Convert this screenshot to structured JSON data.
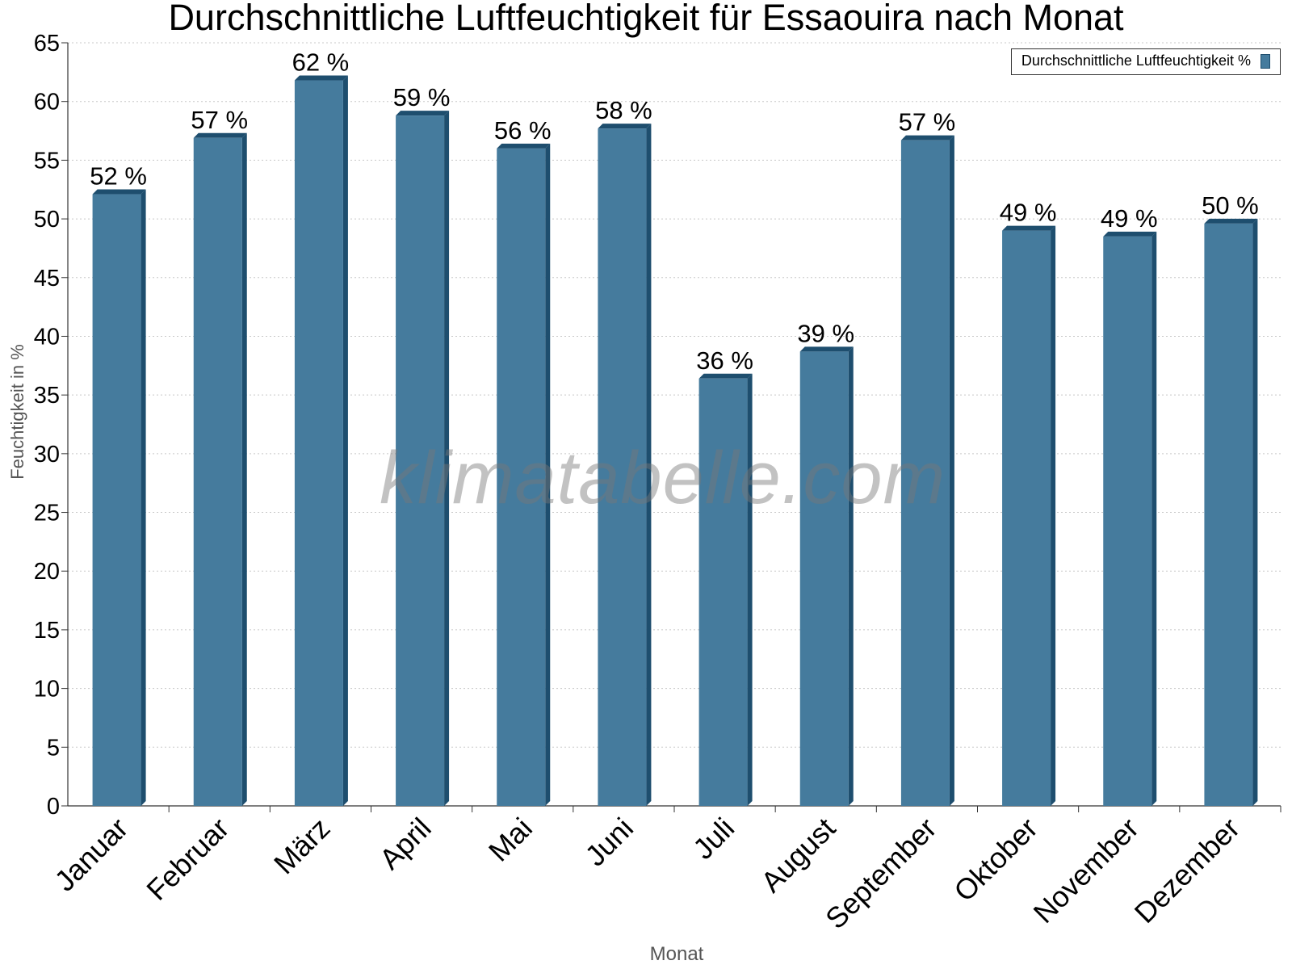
{
  "chart_data": {
    "type": "bar",
    "title": "Durchschnittliche Luftfeuchtigkeit für Essaouira nach Monat",
    "xlabel": "Monat",
    "ylabel": "Feuchtigkeit in %",
    "categories": [
      "Januar",
      "Februar",
      "März",
      "April",
      "Mai",
      "Juni",
      "Juli",
      "August",
      "September",
      "Oktober",
      "November",
      "Dezember"
    ],
    "series": [
      {
        "name": "Durchschnittliche Luftfeuchtigkeit %",
        "values": [
          52.1,
          56.9,
          61.8,
          58.8,
          56.0,
          57.7,
          36.4,
          38.7,
          56.7,
          49.0,
          48.5,
          49.6
        ],
        "labels": [
          "52 %",
          "57 %",
          "62 %",
          "59 %",
          "56 %",
          "58 %",
          "36 %",
          "39 %",
          "57 %",
          "49 %",
          "49 %",
          "50 %"
        ],
        "color": "#457b9d",
        "edge_color": "#1e4e6e"
      }
    ],
    "ylim": [
      0,
      65
    ],
    "yticks": [
      0,
      5,
      10,
      15,
      20,
      25,
      30,
      35,
      40,
      45,
      50,
      55,
      60,
      65
    ],
    "grid": true,
    "legend_position": "top-right"
  },
  "watermark": "klimatabelle.com"
}
